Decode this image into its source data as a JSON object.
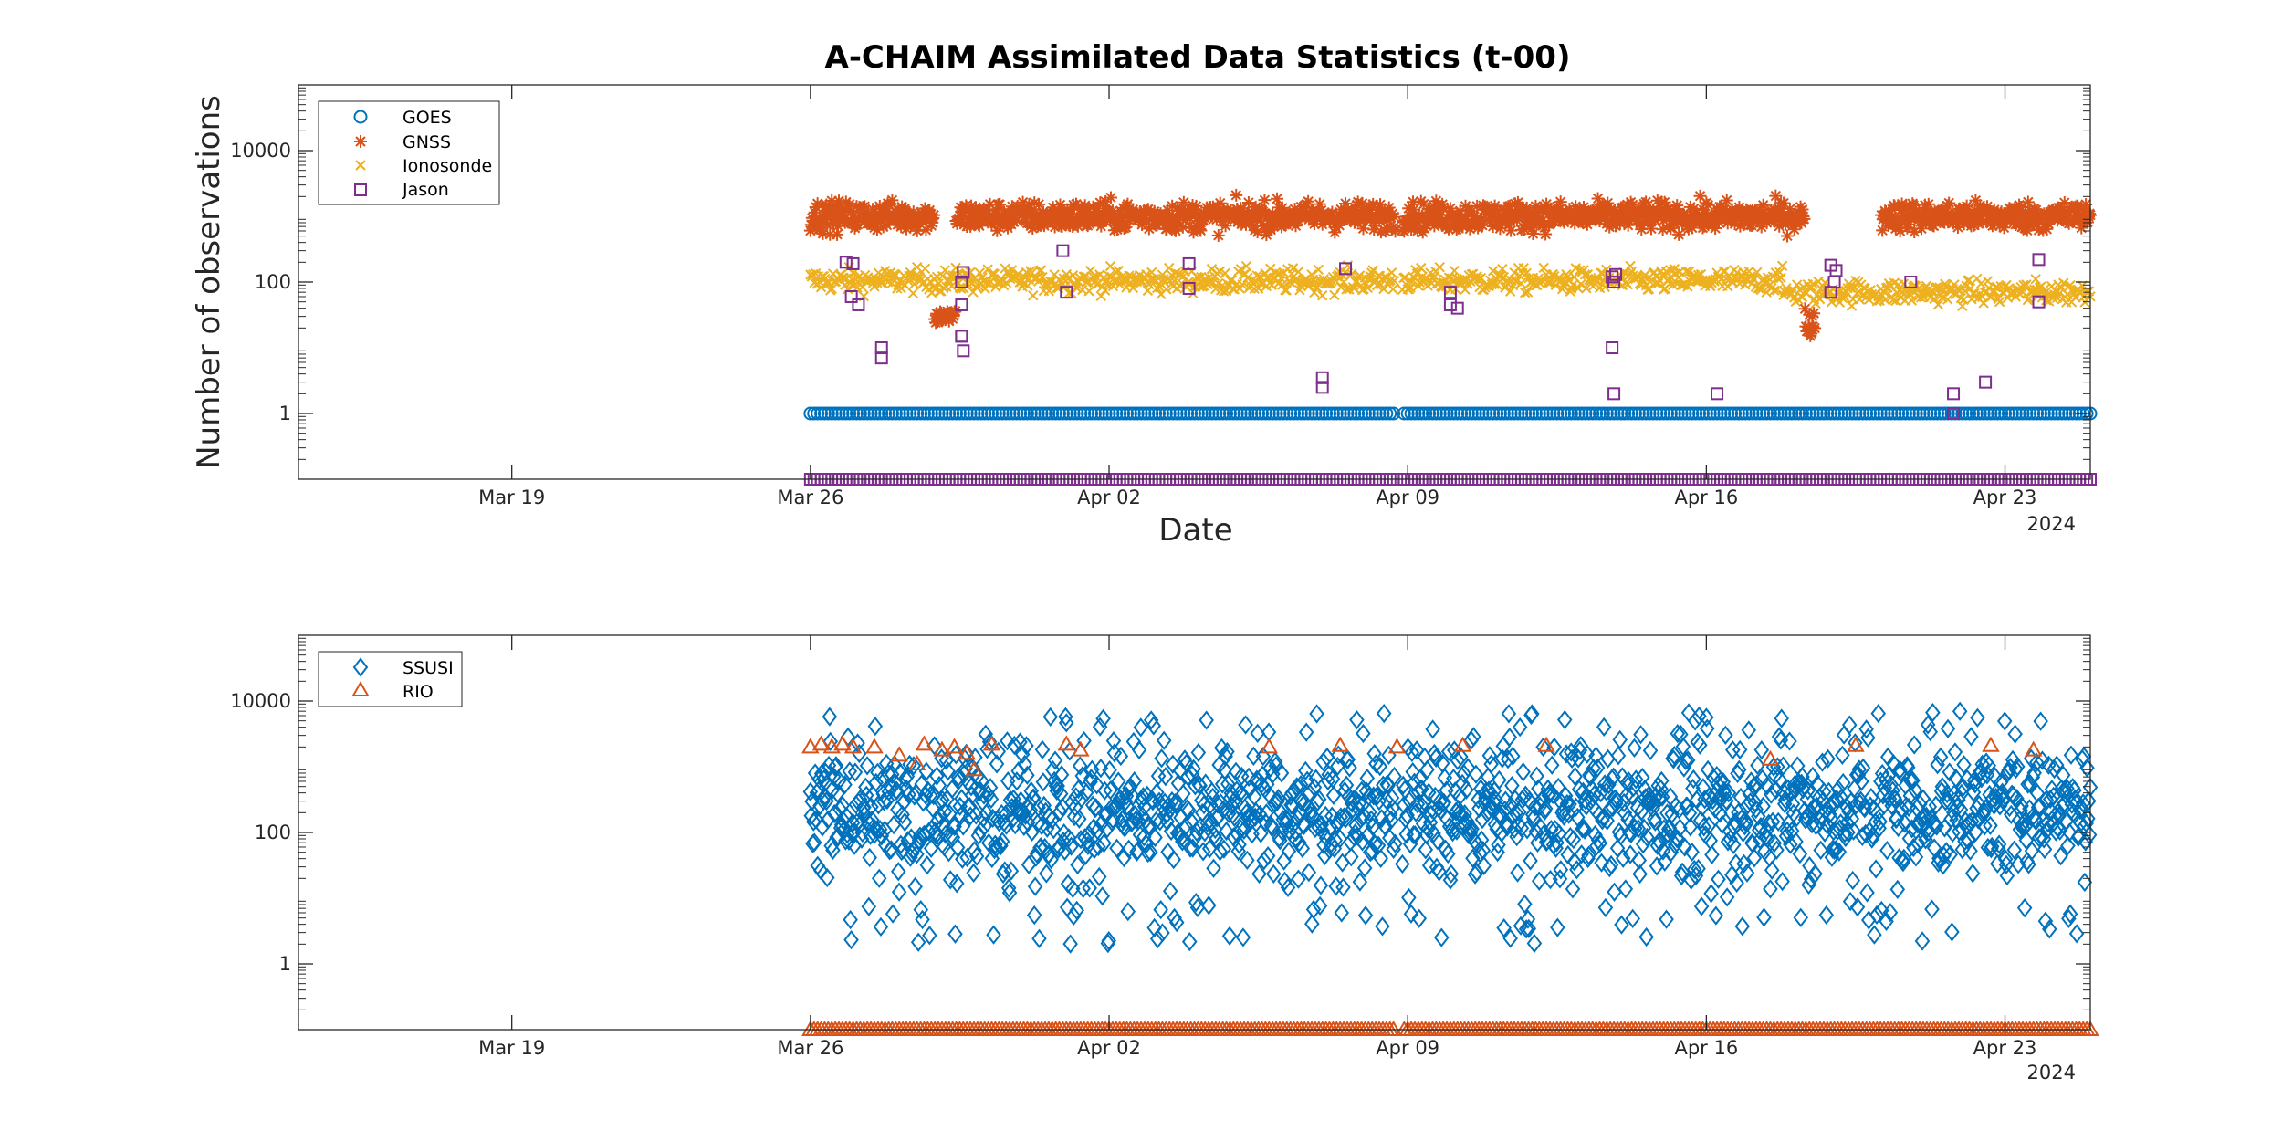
{
  "figure": {
    "title": "A-CHAIM Assimilated Data Statistics (t-00)",
    "colors": {
      "blue": "#0072BD",
      "orange": "#D95319",
      "yellow": "#EDB120",
      "purple": "#7E2F8E",
      "axis": "#262626"
    }
  },
  "chart_data": [
    {
      "type": "scatter",
      "title": "A-CHAIM Assimilated Data Statistics (t-00)",
      "xlabel": "Date",
      "ylabel": "Number of observations",
      "yscale": "log",
      "xlim": [
        "2024-03-14",
        "2024-04-25"
      ],
      "ylim": [
        0.1,
        100000
      ],
      "x_ticks": [
        "Mar 19",
        "Mar 26",
        "Apr 02",
        "Apr 09",
        "Apr 16",
        "Apr 23"
      ],
      "x_year_label": "2024",
      "y_ticks": [
        "1",
        "100",
        "10000"
      ],
      "grid": false,
      "legend_position": "top-left",
      "series": [
        {
          "name": "GOES",
          "marker": "circle",
          "color": "#0072BD",
          "typical_value": 1,
          "date_range": [
            "2024-03-26",
            "2024-04-25"
          ]
        },
        {
          "name": "GNSS",
          "marker": "asterisk",
          "color": "#D95319",
          "typical_value": 1000,
          "date_range": [
            "2024-03-26",
            "2024-04-25"
          ]
        },
        {
          "name": "Ionosonde",
          "marker": "x",
          "color": "#EDB120",
          "typical_value": 100,
          "date_range": [
            "2024-03-26",
            "2024-04-25"
          ]
        },
        {
          "name": "Jason",
          "marker": "square",
          "color": "#7E2F8E",
          "typical_value": 0.1,
          "date_range": [
            "2024-03-26",
            "2024-04-25"
          ],
          "x": [
            "2024-03-26 20:00",
            "2024-03-27 00:00",
            "2024-03-26 23:00",
            "2024-03-27 03:00",
            "2024-03-27 16:00",
            "2024-03-27 16:00",
            "2024-03-29 13:00",
            "2024-03-29 14:00",
            "2024-03-29 13:00",
            "2024-03-29 13:00",
            "2024-03-29 14:00",
            "2024-03-29 13:00",
            "2024-03-31 22:00",
            "2024-04-01 00:00",
            "2024-04-03 21:00",
            "2024-04-03 21:00",
            "2024-04-07 13:00",
            "2024-04-07 00:00",
            "2024-04-07 00:00",
            "2024-04-10 00:00",
            "2024-04-10 00:00",
            "2024-04-10 04:00",
            "2024-04-13 19:00",
            "2024-04-13 21:00",
            "2024-04-13 20:00",
            "2024-04-13 19:00",
            "2024-04-13 20:00",
            "2024-04-16 06:00",
            "2024-04-18 22:00",
            "2024-04-19 00:00",
            "2024-04-19 01:00",
            "2024-04-18 22:00",
            "2024-04-20 19:00",
            "2024-04-21 19:00",
            "2024-04-21 19:00",
            "2024-04-22 13:00",
            "2024-04-23 19:00",
            "2024-04-23 19:00"
          ],
          "y": [
            200,
            190,
            60,
            45,
            10,
            7,
            100,
            140,
            15,
            15,
            9,
            45,
            300,
            70,
            190,
            80,
            160,
            3.5,
            2.5,
            70,
            45,
            40,
            120,
            130,
            100,
            10,
            2,
            2,
            180,
            100,
            150,
            70,
            100,
            2,
            1,
            3,
            220,
            50
          ]
        }
      ]
    },
    {
      "type": "scatter",
      "yscale": "log",
      "xlim": [
        "2024-03-14",
        "2024-04-25"
      ],
      "ylim": [
        0.1,
        100000
      ],
      "x_ticks": [
        "Mar 19",
        "Mar 26",
        "Apr 02",
        "Apr 09",
        "Apr 16",
        "Apr 23"
      ],
      "x_year_label": "2024",
      "y_ticks": [
        "1",
        "100",
        "10000"
      ],
      "grid": false,
      "legend_position": "top-left",
      "series": [
        {
          "name": "SSUSI",
          "marker": "diamond",
          "color": "#0072BD",
          "value_range": [
            2,
            7000
          ],
          "date_range": [
            "2024-03-26",
            "2024-04-25"
          ]
        },
        {
          "name": "RIO",
          "marker": "triangle",
          "color": "#D95319",
          "typical_value": 0.1,
          "date_range": [
            "2024-03-26",
            "2024-04-25"
          ],
          "x": [
            "2024-03-26 00:00",
            "2024-03-26 06:00",
            "2024-03-26 12:00",
            "2024-03-26 18:00",
            "2024-03-27 00:00",
            "2024-03-27 12:00",
            "2024-03-28 02:00",
            "2024-03-28 12:00",
            "2024-03-28 16:00",
            "2024-03-29 02:00",
            "2024-03-29 09:00",
            "2024-03-29 16:00",
            "2024-03-29 20:00",
            "2024-03-30 06:00",
            "2024-04-01 00:00",
            "2024-04-01 08:00",
            "2024-04-05 18:00",
            "2024-04-07 10:00",
            "2024-04-08 18:00",
            "2024-04-10 07:00",
            "2024-04-12 06:00",
            "2024-04-17 12:00",
            "2024-04-19 12:00",
            "2024-04-22 16:00",
            "2024-04-23 16:00"
          ],
          "y": [
            2000,
            2200,
            2000,
            2200,
            2000,
            2000,
            1500,
            1100,
            2200,
            1800,
            2000,
            1600,
            900,
            2200,
            2200,
            1800,
            2000,
            2100,
            2000,
            2100,
            2100,
            1300,
            2100,
            2100,
            1800
          ]
        }
      ]
    }
  ]
}
